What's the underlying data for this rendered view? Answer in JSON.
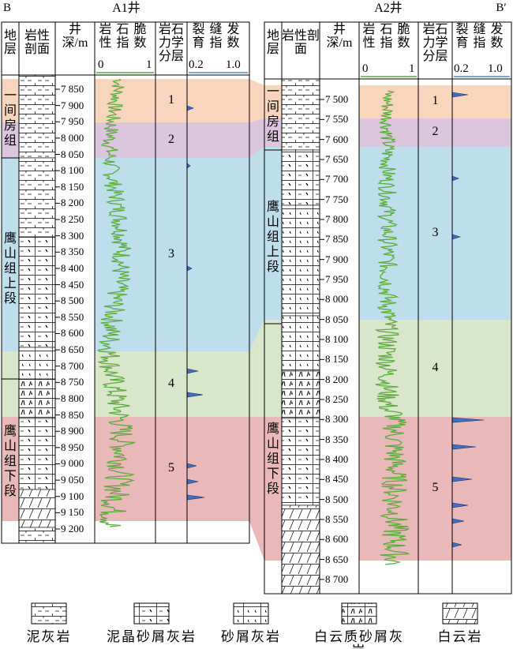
{
  "header": {
    "left": "B",
    "right": "B′"
  },
  "wells": [
    {
      "name": "A1井",
      "columns": {
        "strata": "地层",
        "lithology": "岩性剖面",
        "depth": "井深/m",
        "brittleness": "岩石脆性指数",
        "brittleness_min": "0",
        "brittleness_max": "1",
        "mech_layer": "岩石力学分层",
        "fracture": "裂缝发育指数",
        "fracture_min": "0.2",
        "fracture_max": "1.0"
      },
      "formations": [
        "一间房组",
        "鹰山组上段",
        "鹰山组下段"
      ],
      "layers": [
        "1",
        "2",
        "3",
        "4",
        "5"
      ],
      "depth_ticks": [
        "7 850",
        "7 900",
        "7 950",
        "8 000",
        "8 050",
        "8 100",
        "8 150",
        "8 200",
        "8 250",
        "8 300",
        "8 350",
        "8 400",
        "8 450",
        "8 500",
        "8 550",
        "8 600",
        "8 650",
        "8 700",
        "8 750",
        "8 800",
        "8 850",
        "8 900",
        "8 950",
        "9 000",
        "9 050",
        "9 100",
        "9 150",
        "9 200"
      ]
    },
    {
      "name": "A2井",
      "columns": {
        "strata": "地层",
        "lithology": "岩性剖面",
        "depth": "井深/m",
        "brittleness": "岩石脆性指数",
        "brittleness_min": "0",
        "brittleness_max": "1",
        "mech_layer": "岩石力学分层",
        "fracture": "裂缝发育指数",
        "fracture_min": "0.2",
        "fracture_max": "1.0"
      },
      "formations": [
        "一间房组",
        "鹰山组上段",
        "鹰山组下段"
      ],
      "layers": [
        "1",
        "2",
        "3",
        "4",
        "5"
      ],
      "depth_ticks": [
        "7 500",
        "7 550",
        "7 600",
        "7 650",
        "7 700",
        "7 750",
        "7 800",
        "7 850",
        "7 900",
        "7 950",
        "8 000",
        "8 050",
        "8 100",
        "8 150",
        "8 200",
        "8 250",
        "8 300",
        "8 350",
        "8 400",
        "8 450",
        "8 500",
        "8 550",
        "8 600",
        "8 650",
        "8 700"
      ]
    }
  ],
  "legend": [
    "泥灰岩",
    "泥晶砂屑灰岩",
    "砂屑灰岩",
    "白云质砂屑灰岩",
    "白云岩"
  ]
}
